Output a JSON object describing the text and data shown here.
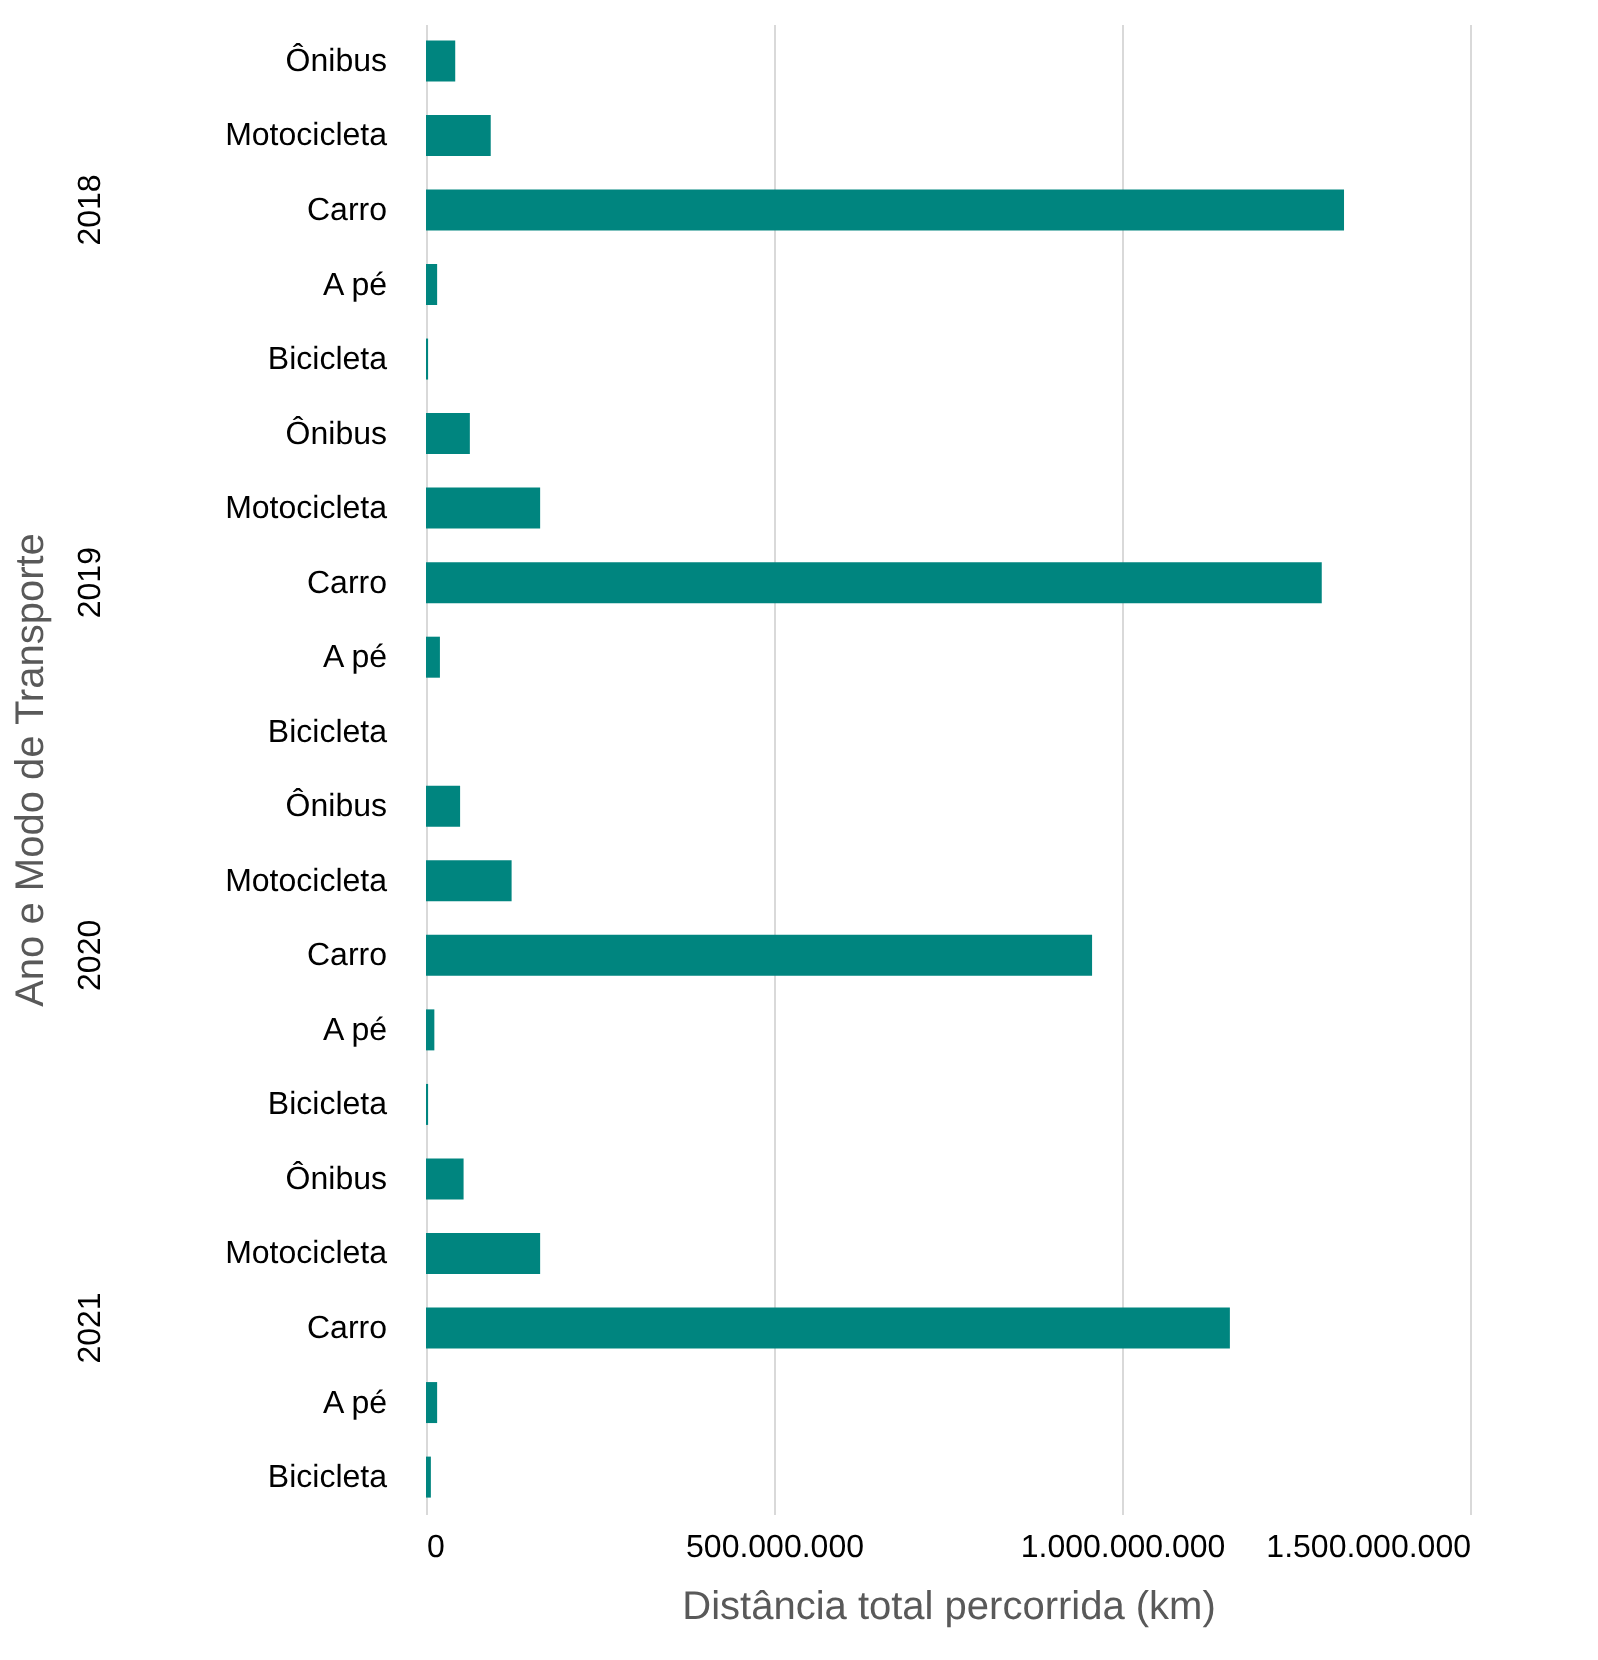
{
  "chart_data": {
    "type": "bar",
    "orientation": "horizontal",
    "xlabel": "Distância total percorrida (km)",
    "ylabel": "Ano e Modo de Transporte",
    "categories": [
      "Ônibus",
      "Motocicleta",
      "Carro",
      "A pé",
      "Bicicleta",
      "Ônibus",
      "Motocicleta",
      "Carro",
      "A pé",
      "Bicicleta",
      "Ônibus",
      "Motocicleta",
      "Carro",
      "A pé",
      "Bicicleta",
      "Ônibus",
      "Motocicleta",
      "Carro",
      "A pé",
      "Bicicleta"
    ],
    "values": [
      42000000,
      93000000,
      1319000000,
      16000000,
      3000000,
      63000000,
      164000000,
      1287000000,
      20000000,
      0,
      49000000,
      123000000,
      957000000,
      12000000,
      3000000,
      54000000,
      164000000,
      1155000000,
      16000000,
      7000000
    ],
    "color": "#00857f",
    "annotations": [
      "2018",
      "2019",
      "2020",
      "2021"
    ],
    "xlim": [
      0,
      1500000000
    ],
    "xticks": [
      0,
      {
        "value": 500000000,
        "label": "500.000.000"
      },
      {
        "value": 1000000000,
        "label": "1.000.000.000"
      },
      {
        "value": 1500000000,
        "label": "1.500.000.000"
      }
    ],
    "grid": "x"
  }
}
